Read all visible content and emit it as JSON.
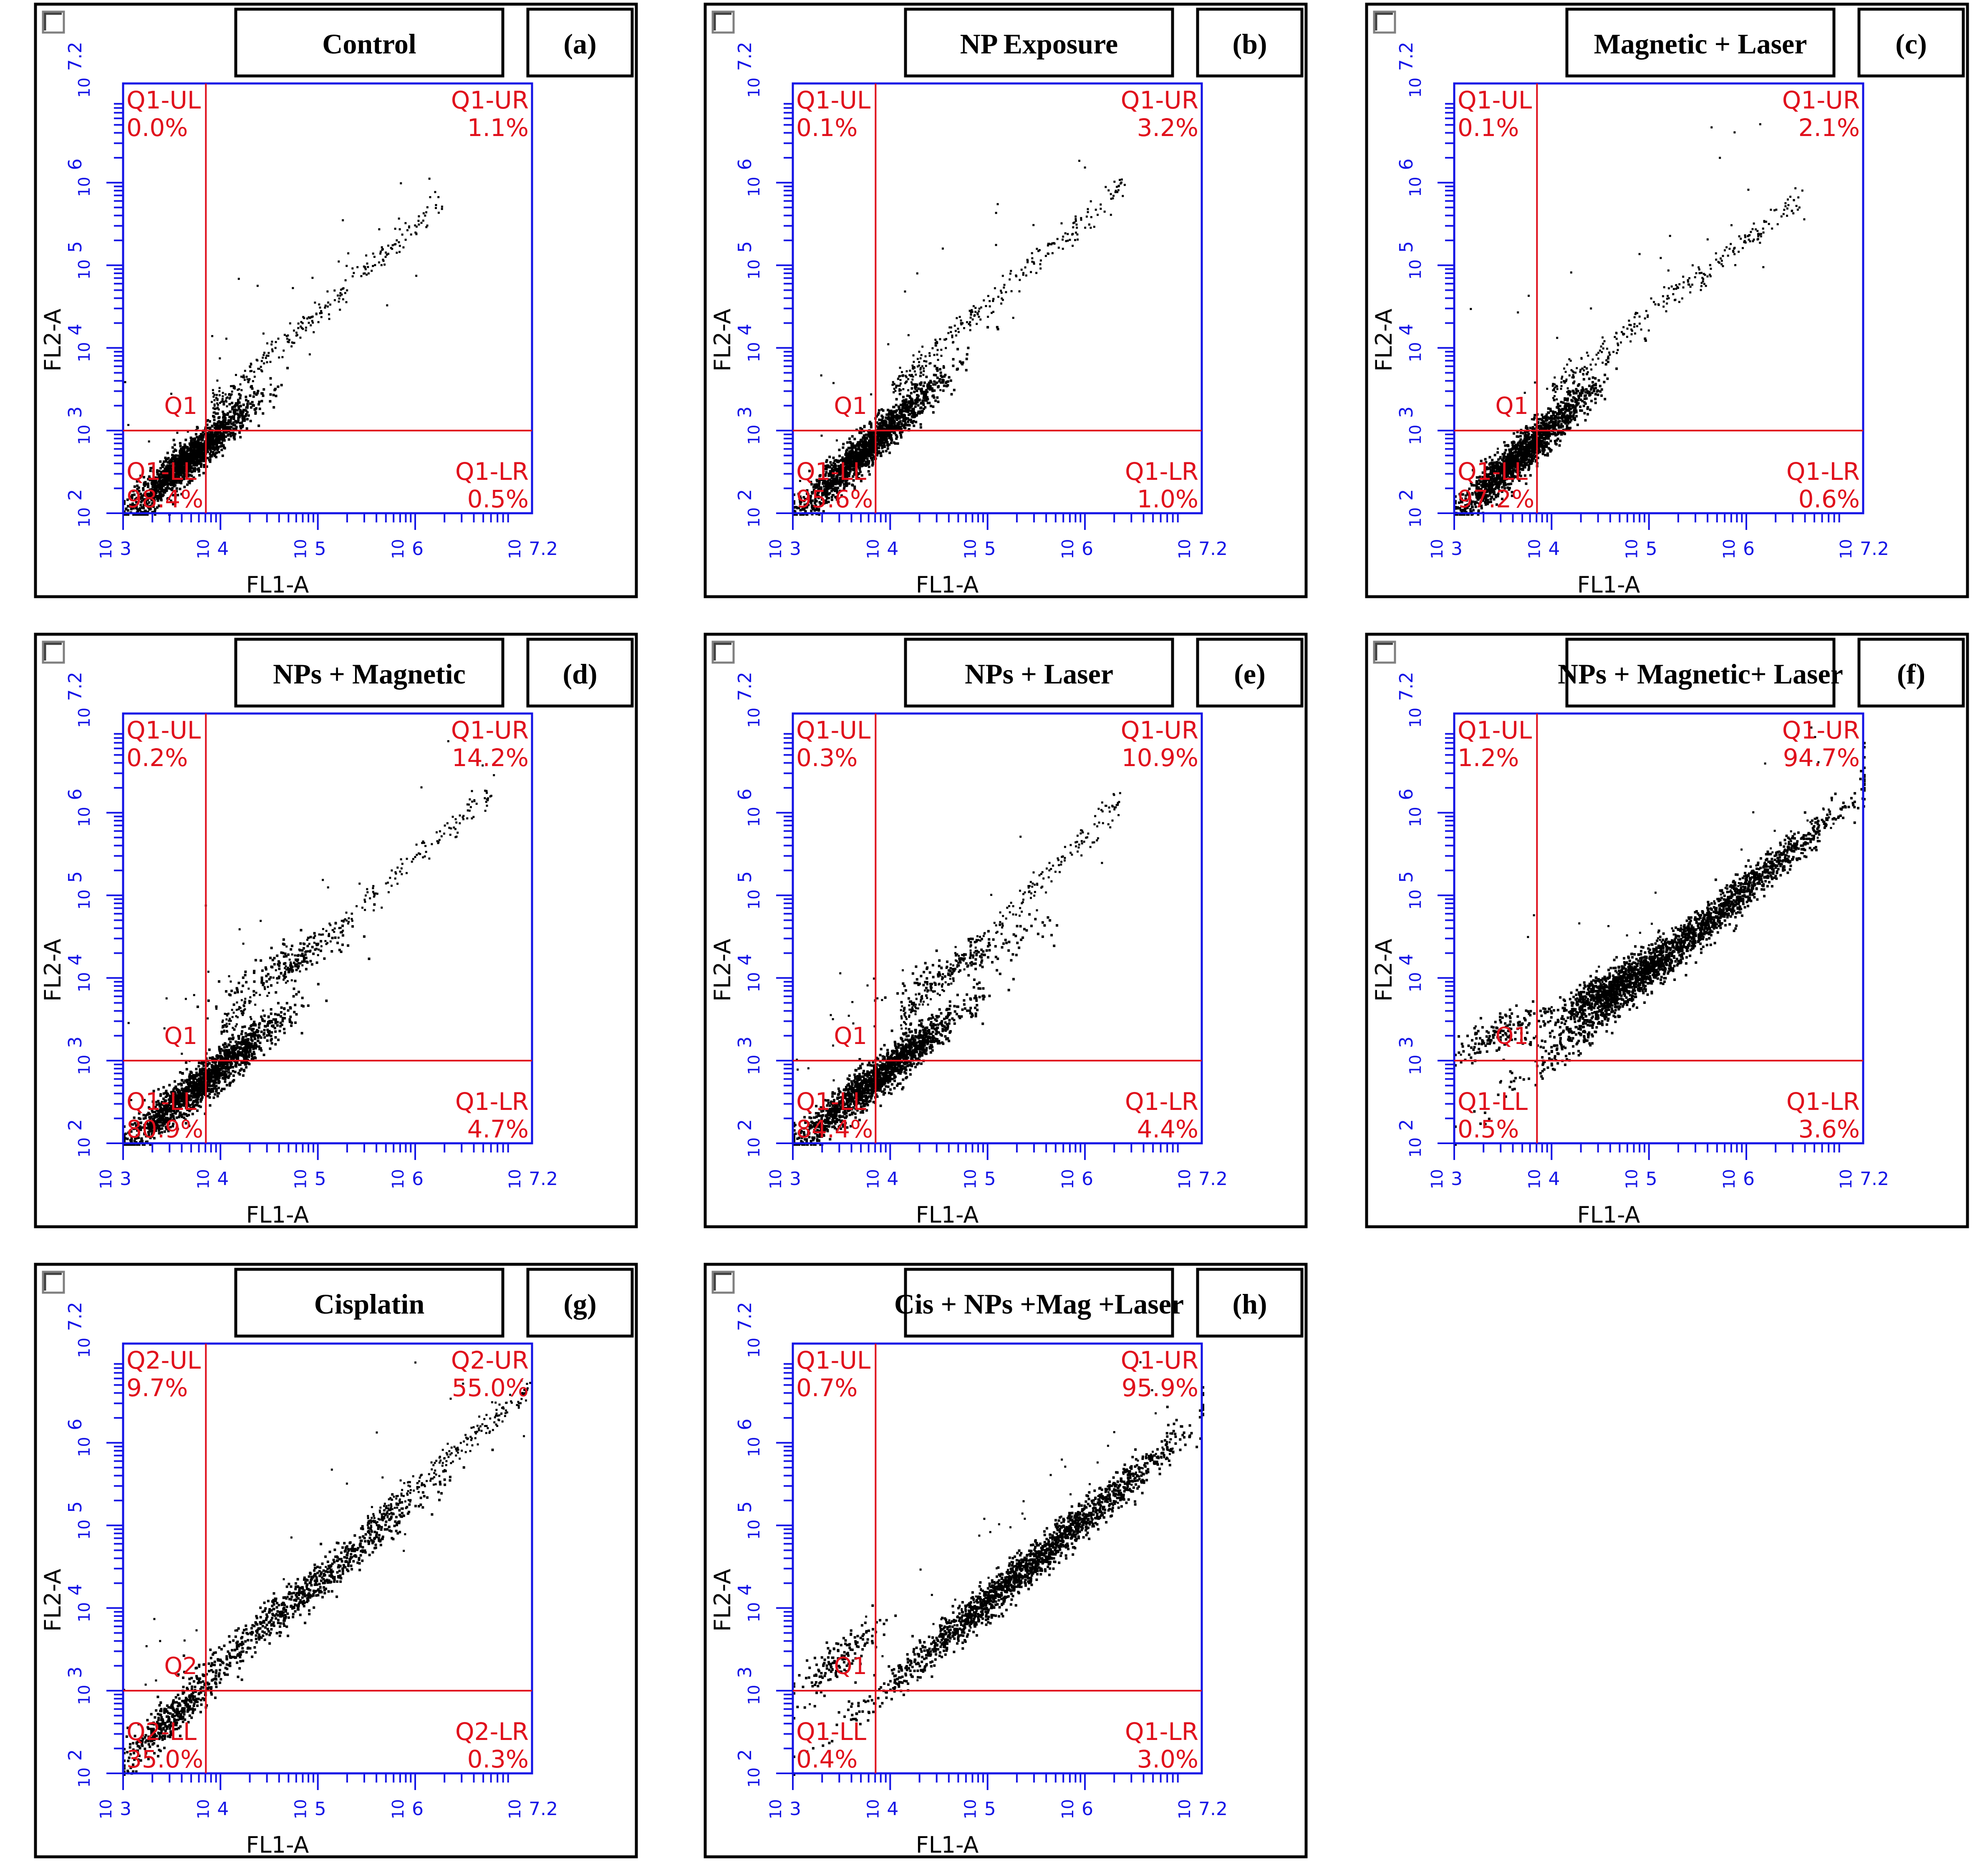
{
  "colors": {
    "axis": "#1414e6",
    "gate": "#e0101c",
    "dots": "#000000",
    "frame": "#000000",
    "background": "#ffffff"
  },
  "chart_data": [
    {
      "type": "scatter",
      "panel_label": "(a)",
      "title": "Control",
      "xlabel": "FL1-A",
      "ylabel": "FL2-A",
      "xlim": [
        3,
        7.2
      ],
      "ylim": [
        2,
        7.2
      ],
      "xscale": "log",
      "yscale": "log",
      "x_ticks": [
        "3",
        "4",
        "5",
        "6",
        "7.2"
      ],
      "y_ticks": [
        "2",
        "3",
        "4",
        "5",
        "6",
        "7.2"
      ],
      "gate": {
        "name": "Q1",
        "x": 3.85,
        "y": 3.0
      },
      "quadrants": {
        "UL": {
          "label": "Q1-UL",
          "value": "0.0%"
        },
        "UR": {
          "label": "Q1-UR",
          "value": "1.1%"
        },
        "LL": {
          "label": "Q1-LL",
          "value": "98.4%"
        },
        "LR": {
          "label": "Q1-LR",
          "value": "0.5%"
        }
      },
      "point_clouds": [
        {
          "x": [
            3.0,
            4.3
          ],
          "y": [
            2.0,
            3.3
          ],
          "density": "very high",
          "slope": 1.0
        }
      ],
      "tail": {
        "from": [
          3.9,
          3.3
        ],
        "to": [
          6.3,
          5.8
        ]
      }
    },
    {
      "type": "scatter",
      "panel_label": "(b)",
      "title": "NP Exposure",
      "xlabel": "FL1-A",
      "ylabel": "FL2-A",
      "xlim": [
        3,
        7.2
      ],
      "ylim": [
        2,
        7.2
      ],
      "xscale": "log",
      "yscale": "log",
      "x_ticks": [
        "3",
        "4",
        "5",
        "6",
        "7.2"
      ],
      "y_ticks": [
        "2",
        "3",
        "4",
        "5",
        "6",
        "7.2"
      ],
      "gate": {
        "name": "Q1",
        "x": 3.85,
        "y": 3.0
      },
      "quadrants": {
        "UL": {
          "label": "Q1-UL",
          "value": "0.1%"
        },
        "UR": {
          "label": "Q1-UR",
          "value": "3.2%"
        },
        "LL": {
          "label": "Q1-LL",
          "value": "95.6%"
        },
        "LR": {
          "label": "Q1-LR",
          "value": "1.0%"
        }
      },
      "point_clouds": [
        {
          "x": [
            3.0,
            4.5
          ],
          "y": [
            2.0,
            3.6
          ],
          "density": "very high",
          "slope": 1.0
        }
      ],
      "tail": {
        "from": [
          4.0,
          3.5
        ],
        "to": [
          6.4,
          6.0
        ]
      }
    },
    {
      "type": "scatter",
      "panel_label": "(c)",
      "title": "Magnetic + Laser",
      "xlabel": "FL1-A",
      "ylabel": "FL2-A",
      "xlim": [
        3,
        7.2
      ],
      "ylim": [
        2,
        7.2
      ],
      "xscale": "log",
      "yscale": "log",
      "x_ticks": [
        "3",
        "4",
        "5",
        "6",
        "7.2"
      ],
      "y_ticks": [
        "2",
        "3",
        "4",
        "5",
        "6",
        "7.2"
      ],
      "gate": {
        "name": "Q1",
        "x": 3.85,
        "y": 3.0
      },
      "quadrants": {
        "UL": {
          "label": "Q1-UL",
          "value": "0.1%"
        },
        "UR": {
          "label": "Q1-UR",
          "value": "2.1%"
        },
        "LL": {
          "label": "Q1-LL",
          "value": "97.2%"
        },
        "LR": {
          "label": "Q1-LR",
          "value": "0.6%"
        }
      },
      "point_clouds": [
        {
          "x": [
            3.0,
            4.4
          ],
          "y": [
            2.0,
            3.5
          ],
          "density": "very high",
          "slope": 1.0
        }
      ],
      "tail": {
        "from": [
          4.0,
          3.5
        ],
        "to": [
          6.6,
          5.9
        ]
      }
    },
    {
      "type": "scatter",
      "panel_label": "(d)",
      "title": "NPs + Magnetic",
      "xlabel": "FL1-A",
      "ylabel": "FL2-A",
      "xlim": [
        3,
        7.2
      ],
      "ylim": [
        2,
        7.2
      ],
      "xscale": "log",
      "yscale": "log",
      "x_ticks": [
        "3",
        "4",
        "5",
        "6",
        "7.2"
      ],
      "y_ticks": [
        "2",
        "3",
        "4",
        "5",
        "6",
        "7.2"
      ],
      "gate": {
        "name": "Q1",
        "x": 3.85,
        "y": 3.0
      },
      "quadrants": {
        "UL": {
          "label": "Q1-UL",
          "value": "0.2%"
        },
        "UR": {
          "label": "Q1-UR",
          "value": "14.2%"
        },
        "LL": {
          "label": "Q1-LL",
          "value": "80.9%"
        },
        "LR": {
          "label": "Q1-LR",
          "value": "4.7%"
        }
      },
      "point_clouds": [
        {
          "x": [
            3.0,
            4.6
          ],
          "y": [
            2.0,
            3.5
          ],
          "density": "very high",
          "slope": 1.0
        },
        {
          "x": [
            4.0,
            5.4
          ],
          "y": [
            3.8,
            4.6
          ],
          "density": "low",
          "slope": 0.6
        }
      ],
      "tail": {
        "from": [
          4.0,
          3.4
        ],
        "to": [
          6.8,
          6.3
        ]
      }
    },
    {
      "type": "scatter",
      "panel_label": "(e)",
      "title": "NPs + Laser",
      "xlabel": "FL1-A",
      "ylabel": "FL2-A",
      "xlim": [
        3,
        7.2
      ],
      "ylim": [
        2,
        7.2
      ],
      "xscale": "log",
      "yscale": "log",
      "x_ticks": [
        "3",
        "4",
        "5",
        "6",
        "7.2"
      ],
      "y_ticks": [
        "2",
        "3",
        "4",
        "5",
        "6",
        "7.2"
      ],
      "gate": {
        "name": "Q1",
        "x": 3.85,
        "y": 3.0
      },
      "quadrants": {
        "UL": {
          "label": "Q1-UL",
          "value": "0.3%"
        },
        "UR": {
          "label": "Q1-UR",
          "value": "10.9%"
        },
        "LL": {
          "label": "Q1-LL",
          "value": "84.4%"
        },
        "LR": {
          "label": "Q1-LR",
          "value": "4.4%"
        }
      },
      "point_clouds": [
        {
          "x": [
            3.0,
            4.7
          ],
          "y": [
            2.0,
            3.6
          ],
          "density": "very high",
          "slope": 1.0
        },
        {
          "x": [
            4.0,
            5.6
          ],
          "y": [
            3.8,
            4.7
          ],
          "density": "low",
          "slope": 0.6
        }
      ],
      "tail": {
        "from": [
          4.1,
          3.5
        ],
        "to": [
          6.4,
          6.2
        ]
      }
    },
    {
      "type": "scatter",
      "panel_label": "(f)",
      "title": "NPs + Magnetic+ Laser",
      "xlabel": "FL1-A",
      "ylabel": "FL2-A",
      "xlim": [
        3,
        7.2
      ],
      "ylim": [
        2,
        7.2
      ],
      "xscale": "log",
      "yscale": "log",
      "x_ticks": [
        "3",
        "4",
        "5",
        "6",
        "7.2"
      ],
      "y_ticks": [
        "2",
        "3",
        "4",
        "5",
        "6",
        "7.2"
      ],
      "gate": {
        "name": "Q1",
        "x": 3.85,
        "y": 3.0
      },
      "quadrants": {
        "UL": {
          "label": "Q1-UL",
          "value": "1.2%"
        },
        "UR": {
          "label": "Q1-UR",
          "value": "94.7%"
        },
        "LL": {
          "label": "Q1-LL",
          "value": "0.5%"
        },
        "LR": {
          "label": "Q1-LR",
          "value": "3.6%"
        }
      },
      "point_clouds": [
        {
          "x": [
            3.9,
            6.9
          ],
          "y": [
            3.0,
            6.0
          ],
          "density": "very high",
          "slope": 1.0
        },
        {
          "x": [
            4.0,
            5.2
          ],
          "y": [
            3.5,
            4.3
          ],
          "density": "high",
          "slope": 0.65
        },
        {
          "x": [
            3.0,
            3.9
          ],
          "y": [
            3.1,
            3.6
          ],
          "density": "low",
          "slope": 0.3
        }
      ],
      "tail": {
        "from": [
          4.5,
          3.8
        ],
        "to": [
          6.9,
          6.0
        ]
      }
    },
    {
      "type": "scatter",
      "panel_label": "(g)",
      "title": "Cisplatin",
      "xlabel": "FL1-A",
      "ylabel": "FL2-A",
      "xlim": [
        3,
        7.2
      ],
      "ylim": [
        2,
        7.2
      ],
      "xscale": "log",
      "yscale": "log",
      "x_ticks": [
        "3",
        "4",
        "5",
        "6",
        "7.2"
      ],
      "y_ticks": [
        "2",
        "3",
        "4",
        "5",
        "6",
        "7.2"
      ],
      "gate": {
        "name": "Q2",
        "x": 3.85,
        "y": 3.0
      },
      "quadrants": {
        "UL": {
          "label": "Q2-UL",
          "value": "9.7%"
        },
        "UR": {
          "label": "Q2-UR",
          "value": "55.0%"
        },
        "LL": {
          "label": "Q2-LL",
          "value": "35.0%"
        },
        "LR": {
          "label": "Q2-LR",
          "value": "0.3%"
        }
      },
      "point_clouds": [
        {
          "x": [
            3.0,
            4.0
          ],
          "y": [
            2.2,
            3.2
          ],
          "density": "medium",
          "slope": 1.0
        },
        {
          "x": [
            3.6,
            6.0
          ],
          "y": [
            3.0,
            5.3
          ],
          "density": "high",
          "slope": 1.0
        }
      ],
      "tail": {
        "from": [
          5.5,
          5.0
        ],
        "to": [
          7.2,
          6.7
        ]
      }
    },
    {
      "type": "scatter",
      "panel_label": "(h)",
      "title": "Cis + NPs +Mag +Laser",
      "xlabel": "FL1-A",
      "ylabel": "FL2-A",
      "xlim": [
        3,
        7.2
      ],
      "ylim": [
        2,
        7.2
      ],
      "xscale": "log",
      "yscale": "log",
      "x_ticks": [
        "3",
        "4",
        "5",
        "6",
        "7.2"
      ],
      "y_ticks": [
        "2",
        "3",
        "4",
        "5",
        "6",
        "7.2"
      ],
      "gate": {
        "name": "Q1",
        "x": 3.85,
        "y": 3.0
      },
      "quadrants": {
        "UL": {
          "label": "Q1-UL",
          "value": "0.7%"
        },
        "UR": {
          "label": "Q1-UR",
          "value": "95.9%"
        },
        "LL": {
          "label": "Q1-LL",
          "value": "0.4%"
        },
        "LR": {
          "label": "Q1-LR",
          "value": "3.0%"
        }
      },
      "point_clouds": [
        {
          "x": [
            3.9,
            6.9
          ],
          "y": [
            3.0,
            6.0
          ],
          "density": "very high",
          "slope": 1.0
        },
        {
          "x": [
            3.0,
            3.9
          ],
          "y": [
            3.0,
            3.8
          ],
          "density": "low",
          "slope": 0.3
        }
      ],
      "tail": {
        "from": [
          4.5,
          3.7
        ],
        "to": [
          6.9,
          6.0
        ]
      }
    }
  ]
}
